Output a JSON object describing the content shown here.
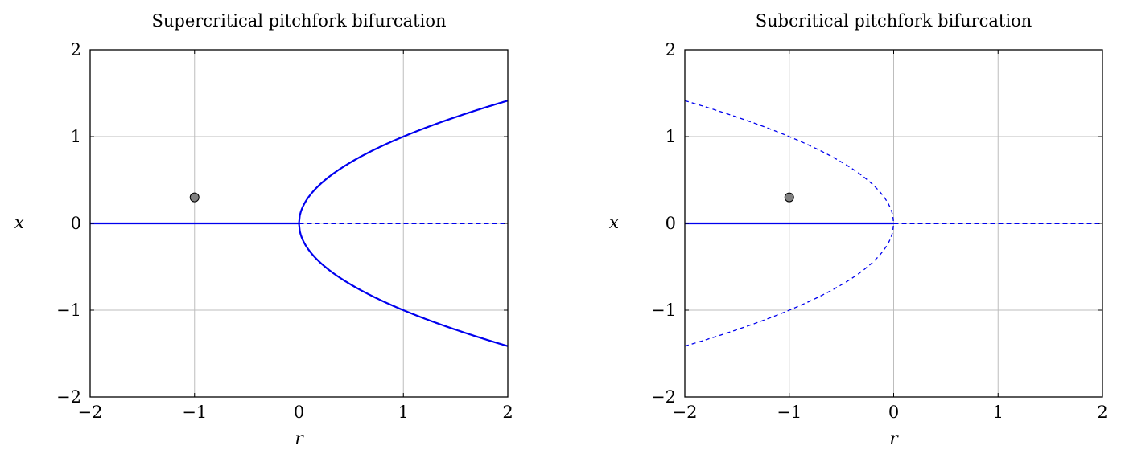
{
  "chart_data": [
    {
      "type": "line",
      "title": "Supercritical pitchfork bifurcation",
      "xlabel": "r",
      "ylabel": "x",
      "xlim": [
        -2,
        2
      ],
      "ylim": [
        -2,
        2
      ],
      "xticks": [
        -2,
        -1,
        0,
        1,
        2
      ],
      "yticks": [
        -2,
        -1,
        0,
        1,
        2
      ],
      "xtick_labels": [
        "−2",
        "−1",
        "0",
        "1",
        "2"
      ],
      "ytick_labels": [
        "−2",
        "−1",
        "0",
        "1",
        "2"
      ],
      "grid": true,
      "color": "#0000ee",
      "series": [
        {
          "kind": "line",
          "style": "solid",
          "points": [
            [
              -2,
              0
            ],
            [
              0,
              0
            ]
          ]
        },
        {
          "kind": "line",
          "style": "dashed",
          "points": [
            [
              0,
              0
            ],
            [
              2,
              0
            ]
          ]
        },
        {
          "kind": "function",
          "style": "solid",
          "expr": "sqrt(r)",
          "domain": [
            0,
            2
          ]
        },
        {
          "kind": "function",
          "style": "solid",
          "expr": "-sqrt(r)",
          "domain": [
            0,
            2
          ]
        }
      ],
      "markers": [
        {
          "x": -1,
          "y": 0.3,
          "color": "#808080"
        }
      ]
    },
    {
      "type": "line",
      "title": "Subcritical pitchfork bifurcation",
      "xlabel": "r",
      "ylabel": "x",
      "xlim": [
        -2,
        2
      ],
      "ylim": [
        -2,
        2
      ],
      "xticks": [
        -2,
        -1,
        0,
        1,
        2
      ],
      "yticks": [
        -2,
        -1,
        0,
        1,
        2
      ],
      "xtick_labels": [
        "−2",
        "−1",
        "0",
        "1",
        "2"
      ],
      "ytick_labels": [
        "−2",
        "−1",
        "0",
        "1",
        "2"
      ],
      "grid": true,
      "color": "#0000ee",
      "series": [
        {
          "kind": "line",
          "style": "solid",
          "points": [
            [
              -2,
              0
            ],
            [
              0,
              0
            ]
          ]
        },
        {
          "kind": "line",
          "style": "dashed",
          "points": [
            [
              0,
              0
            ],
            [
              2,
              0
            ]
          ]
        },
        {
          "kind": "function",
          "style": "dashed",
          "expr": "sqrt(-r)",
          "domain": [
            -2,
            0
          ]
        },
        {
          "kind": "function",
          "style": "dashed",
          "expr": "-sqrt(-r)",
          "domain": [
            -2,
            0
          ]
        }
      ],
      "markers": [
        {
          "x": -1,
          "y": 0.3,
          "color": "#808080"
        }
      ]
    }
  ]
}
